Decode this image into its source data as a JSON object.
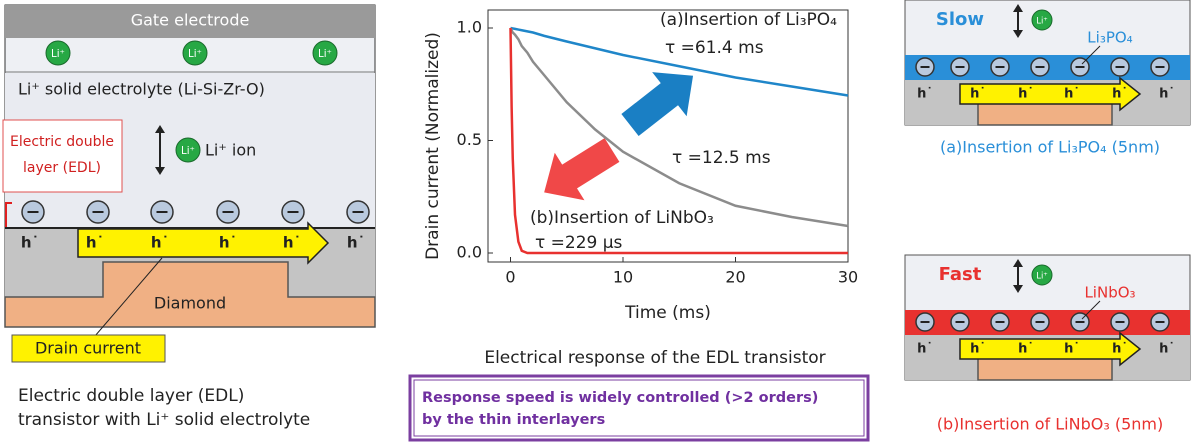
{
  "left_panel": {
    "gate": "Gate electrode",
    "ion_badge": "Li⁺",
    "electrolyte": "Li⁺ solid electrolyte (Li-Si-Zr-O)",
    "ion": "Li⁺ ion",
    "edl": [
      "Electric double",
      "layer (EDL)"
    ],
    "hole": "h˙",
    "substrate": "Diamond",
    "drain": "Drain current",
    "caption": [
      "Electric double layer (EDL)",
      "transistor with Li⁺ solid electrolyte"
    ]
  },
  "chart_data": {
    "type": "line",
    "xlabel": "Time (ms)",
    "ylabel": "Drain current (Normalized)",
    "x": [
      0,
      0.1,
      0.2,
      0.4,
      0.7,
      1,
      1.5,
      2,
      3,
      5,
      7.5,
      10,
      15,
      20,
      25,
      30
    ],
    "series": [
      {
        "color": "#1f86c9",
        "values": [
          1,
          0.999,
          0.998,
          0.996,
          0.993,
          0.99,
          0.985,
          0.98,
          0.965,
          0.94,
          0.91,
          0.88,
          0.83,
          0.78,
          0.74,
          0.7
        ]
      },
      {
        "color": "#8c8c8c",
        "values": [
          1,
          0.99,
          0.98,
          0.97,
          0.95,
          0.92,
          0.89,
          0.85,
          0.79,
          0.67,
          0.55,
          0.45,
          0.31,
          0.21,
          0.16,
          0.12
        ]
      },
      {
        "color": "#e8312f",
        "values": [
          1,
          0.65,
          0.42,
          0.17,
          0.05,
          0.01,
          0,
          0,
          0,
          0,
          0,
          0,
          0,
          0,
          0,
          0
        ]
      }
    ],
    "xlim": [
      -2,
      30
    ],
    "xticks": [
      0,
      10,
      20,
      30
    ],
    "ylim": [
      -0.04,
      1.08
    ],
    "yticks": [
      {
        "value": 0,
        "label": "0.0"
      },
      0.5,
      {
        "value": 1,
        "label": "1.0"
      }
    ],
    "grid": false,
    "annotations": [
      "(a)Insertion of Li₃PO₄",
      "τ =61.4 ms",
      "τ =12.5 ms",
      "(b)Insertion of LiNbO₃",
      "τ =229 μs"
    ],
    "caption": "Electrical response of the EDL transistor",
    "note": [
      "Response speed is widely controlled (>2 orders)",
      "by the thin interlayers"
    ]
  },
  "right_panels": [
    {
      "speed": "Slow",
      "layer": "Li₃PO₄",
      "color": "#2a8fd8",
      "caption": "(a)Insertion of Li₃PO₄ (5nm)"
    },
    {
      "speed": "Fast",
      "layer": "LiNbO₃",
      "color": "#e8312f",
      "caption": "(b)Insertion of LiNbO₃ (5nm)"
    }
  ]
}
